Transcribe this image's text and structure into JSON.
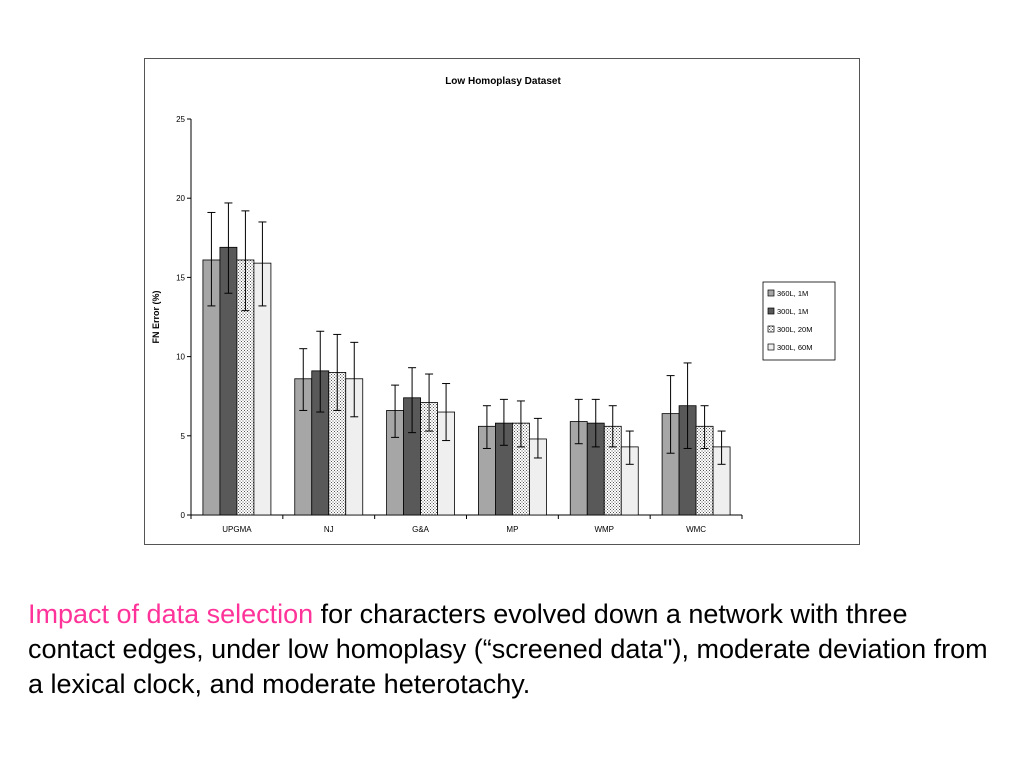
{
  "chart_data": {
    "type": "bar",
    "title": "Low Homoplasy Dataset",
    "xlabel": "",
    "ylabel": "FN Error (%)",
    "ylim": [
      0,
      25
    ],
    "yticks": [
      0,
      5,
      10,
      15,
      20,
      25
    ],
    "grid": false,
    "legend_position": "right",
    "categories": [
      "UPGMA",
      "NJ",
      "G&A",
      "MP",
      "WMP",
      "WMC"
    ],
    "series": [
      {
        "name": "360L, 1M",
        "fill": "#a6a6a6",
        "pattern": "solid",
        "values": [
          16.1,
          8.6,
          6.6,
          5.6,
          5.9,
          6.4
        ],
        "err_low": [
          13.2,
          6.6,
          4.9,
          4.2,
          4.5,
          3.9
        ],
        "err_high": [
          19.1,
          10.5,
          8.2,
          6.9,
          7.3,
          8.8
        ]
      },
      {
        "name": "300L, 1M",
        "fill": "#595959",
        "pattern": "solid",
        "values": [
          16.9,
          9.1,
          7.4,
          5.8,
          5.8,
          6.9
        ],
        "err_low": [
          14.0,
          6.5,
          5.2,
          4.4,
          4.3,
          4.2
        ],
        "err_high": [
          19.7,
          11.6,
          9.3,
          7.3,
          7.3,
          9.6
        ]
      },
      {
        "name": "300L, 20M",
        "fill": "#d9d9d9",
        "pattern": "dots",
        "values": [
          16.1,
          9.0,
          7.1,
          5.8,
          5.6,
          5.6
        ],
        "err_low": [
          12.9,
          6.6,
          5.3,
          4.3,
          4.3,
          4.2
        ],
        "err_high": [
          19.2,
          11.4,
          8.9,
          7.2,
          6.9,
          6.9
        ]
      },
      {
        "name": "300L, 60M",
        "fill": "#efefef",
        "pattern": "solid",
        "values": [
          15.9,
          8.6,
          6.5,
          4.8,
          4.3,
          4.3
        ],
        "err_low": [
          13.2,
          6.2,
          4.7,
          3.6,
          3.2,
          3.2
        ],
        "err_high": [
          18.5,
          10.9,
          8.3,
          6.1,
          5.3,
          5.3
        ]
      }
    ]
  },
  "caption": {
    "highlight": "Impact of data selection",
    "text": " for characters evolved down a network with three contact edges, under low homoplasy (“screened data\"), moderate deviation from a lexical clock, and moderate heterotachy.",
    "highlight_color": "#ff3399"
  }
}
